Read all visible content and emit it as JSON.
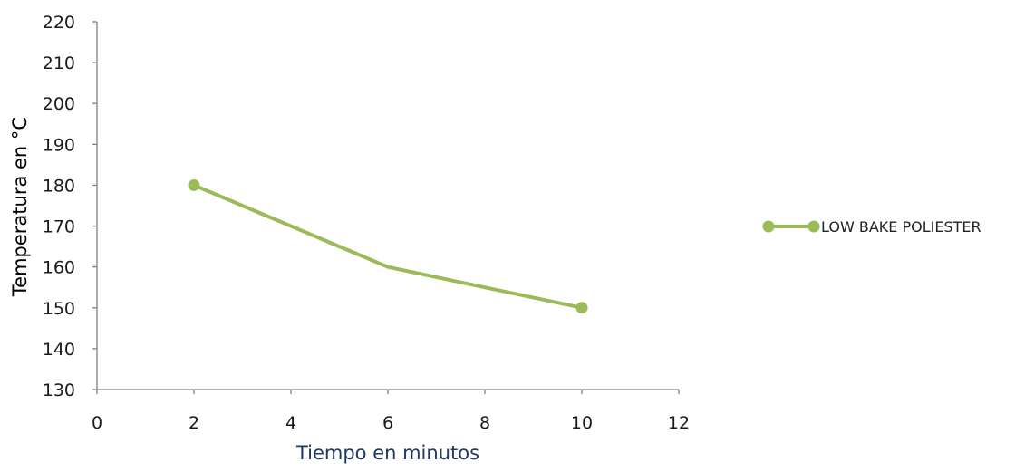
{
  "chart_data": {
    "type": "scatter",
    "title": "",
    "xlabel": "Tiempo en minutos",
    "ylabel": "Temperatura en °C",
    "xlim": [
      0,
      12
    ],
    "ylim": [
      130,
      220
    ],
    "xticks": [
      0,
      2,
      4,
      6,
      8,
      10,
      12
    ],
    "yticks": [
      130,
      140,
      150,
      160,
      170,
      180,
      190,
      200,
      210,
      220
    ],
    "grid": false,
    "legend_position": "right",
    "series": [
      {
        "name": "LOW BAKE POLIESTER",
        "x": [
          2,
          6,
          10
        ],
        "y": [
          180,
          160,
          150
        ],
        "marker_visible": [
          true,
          false,
          true
        ],
        "color": "#9bbb59"
      }
    ],
    "colors": {
      "axis": "#808080",
      "xlabel": "#1f3864",
      "ylabel": "#000000",
      "series": "#9bbb59"
    }
  }
}
